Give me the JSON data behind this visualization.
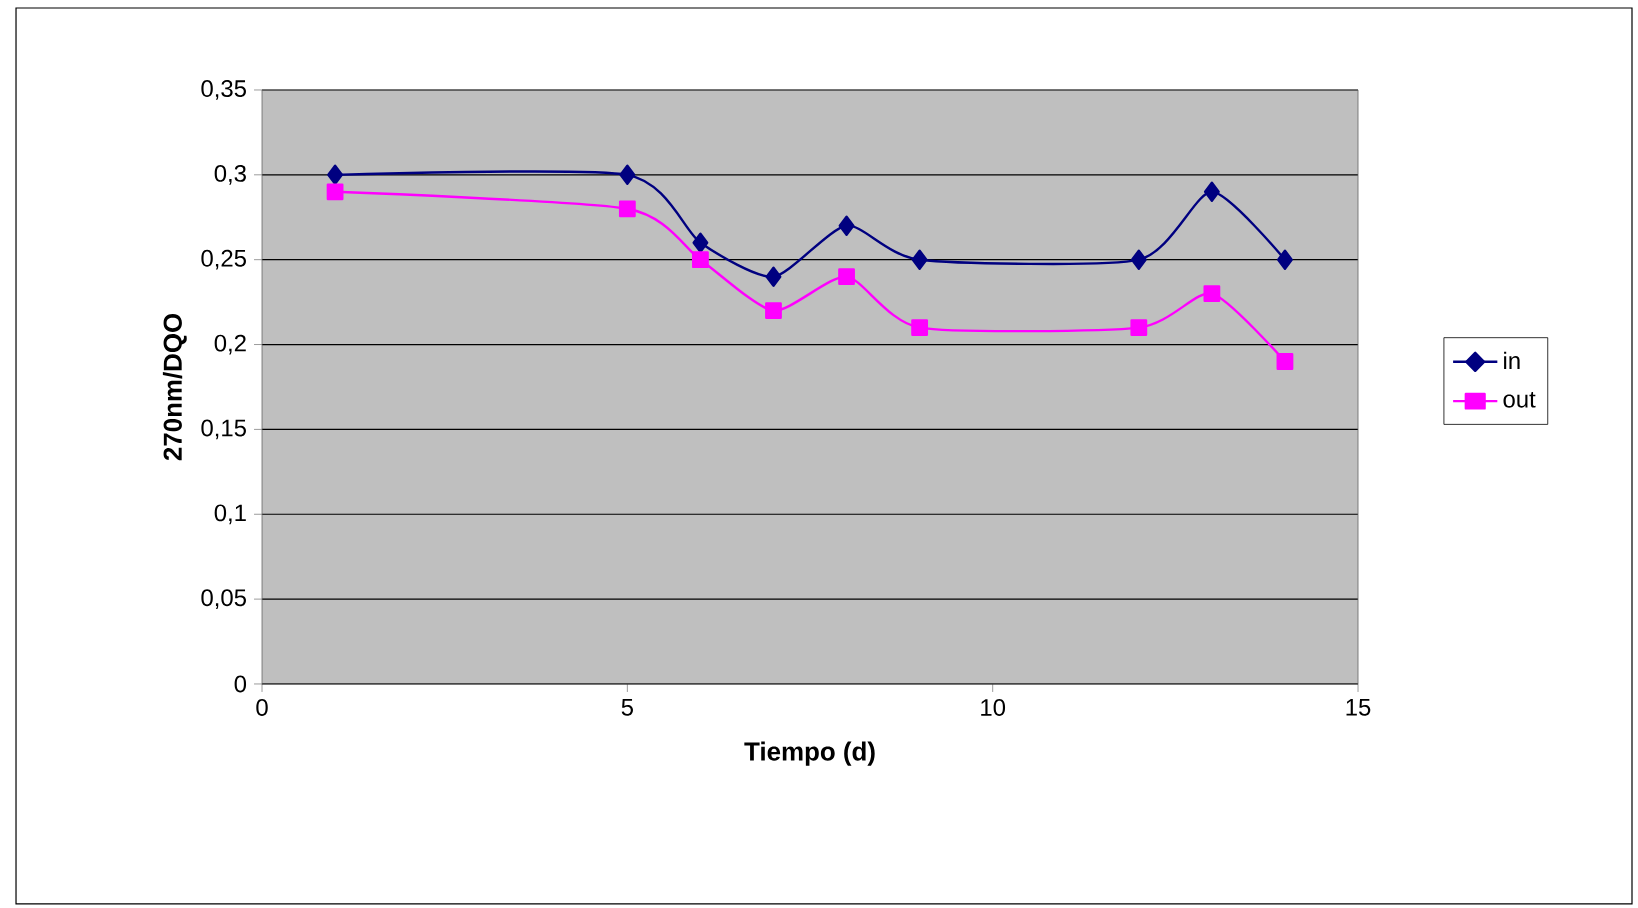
{
  "chart_data": {
    "type": "line",
    "xlabel": "Tiempo (d)",
    "ylabel": "270nm/DQO",
    "series": [
      {
        "name": "in",
        "color": "#000080",
        "marker": "diamond",
        "x": [
          1,
          5,
          6,
          7,
          8,
          9,
          12,
          13,
          14
        ],
        "values": [
          0.3,
          0.3,
          0.26,
          0.24,
          0.27,
          0.25,
          0.25,
          0.29,
          0.25
        ]
      },
      {
        "name": "out",
        "color": "#ff00ff",
        "marker": "square",
        "x": [
          1,
          5,
          6,
          7,
          8,
          9,
          12,
          13,
          14
        ],
        "values": [
          0.29,
          0.28,
          0.25,
          0.22,
          0.24,
          0.21,
          0.21,
          0.23,
          0.19
        ]
      }
    ],
    "xlim": [
      0,
      15
    ],
    "xticks": [
      0,
      5,
      10,
      15
    ],
    "ylim": [
      0,
      0.35
    ],
    "yticks": [
      {
        "value": 0,
        "label": "0"
      },
      {
        "value": 0.05,
        "label": "0,05"
      },
      {
        "value": 0.1,
        "label": "0,1"
      },
      {
        "value": 0.15,
        "label": "0,15"
      },
      {
        "value": 0.2,
        "label": "0,2"
      },
      {
        "value": 0.25,
        "label": "0,25"
      },
      {
        "value": 0.3,
        "label": "0,3"
      },
      {
        "value": 0.35,
        "label": "0,35"
      }
    ],
    "grid": "y",
    "legend": "right",
    "line_style": "solid"
  }
}
